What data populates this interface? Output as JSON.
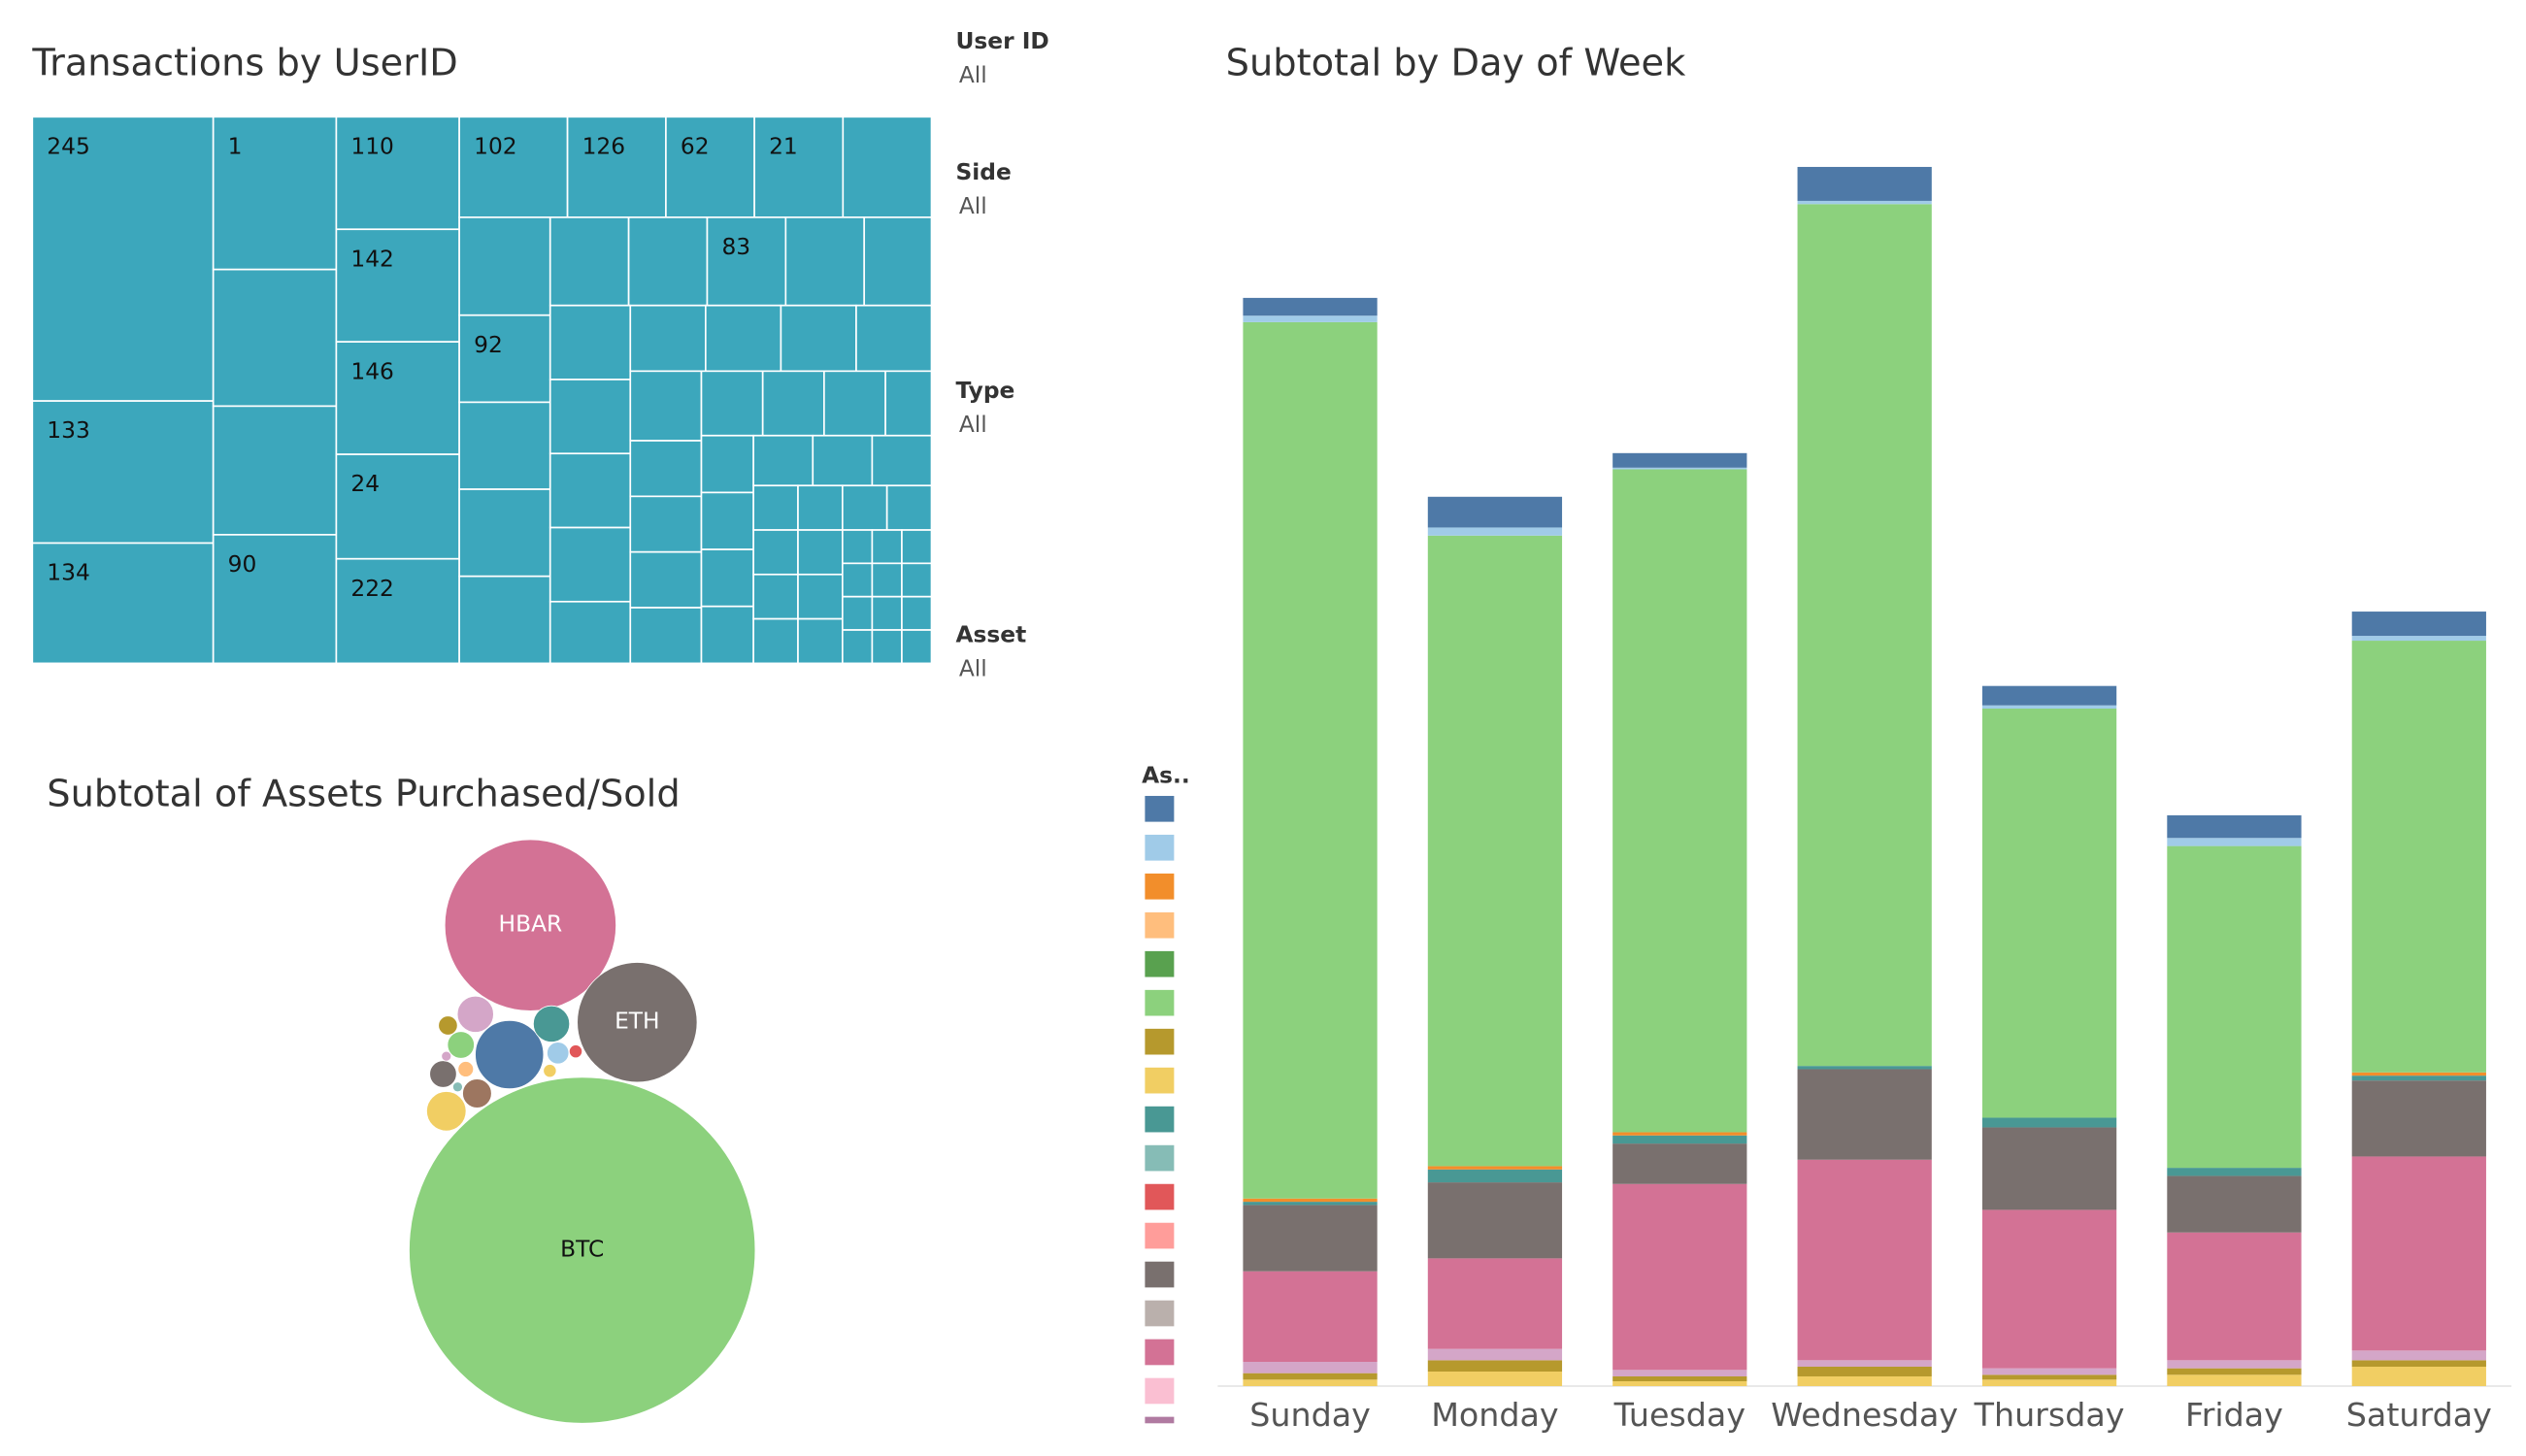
{
  "filters": [
    {
      "label": "User ID",
      "value": "All"
    },
    {
      "label": "Side",
      "value": "All"
    },
    {
      "label": "Type",
      "value": "All"
    },
    {
      "label": "Asset",
      "value": "All"
    }
  ],
  "chart_data": [
    {
      "type": "treemap",
      "title": "Transactions by UserID",
      "color": "#3ca7bc",
      "categories": [
        "245",
        "133",
        "134",
        "1",
        null,
        null,
        "90",
        "110",
        "142",
        "146",
        "24",
        "222",
        "102",
        "126",
        "62",
        "21",
        null,
        null,
        "92",
        null,
        null,
        null,
        null,
        null,
        "83",
        null,
        null,
        null,
        null,
        null,
        null,
        null,
        null,
        null,
        null,
        null,
        null,
        null,
        null,
        null,
        null,
        null,
        null,
        null,
        null,
        null,
        null,
        null,
        null,
        null,
        null,
        null,
        null,
        null,
        null,
        null,
        null,
        null,
        null,
        null,
        null,
        null,
        null,
        null,
        null,
        null,
        null,
        null,
        null,
        null,
        null,
        null,
        null,
        null
      ],
      "values": [
        52,
        26,
        22,
        19,
        17,
        16,
        16,
        14,
        14,
        14,
        13,
        13,
        11,
        10,
        9,
        9,
        9,
        9,
        8,
        8,
        8,
        8,
        7,
        7,
        7,
        7,
        6,
        6,
        6,
        6,
        6,
        5,
        5,
        5,
        5,
        5,
        5,
        4,
        4,
        4,
        4,
        4,
        4,
        4,
        3,
        3,
        3,
        3,
        3,
        3,
        3,
        3,
        2,
        2,
        2,
        2,
        2,
        2,
        2,
        2,
        2,
        2,
        1,
        1,
        1,
        1,
        1,
        1,
        1,
        1,
        1,
        1,
        1,
        1
      ]
    },
    {
      "type": "packed_bubble",
      "title": "Subtotal of Assets Purchased/Sold",
      "categories": [
        "BTC",
        "HBAR",
        "ETH",
        null,
        null,
        null,
        null,
        null,
        null,
        null,
        null,
        null,
        null,
        null,
        null,
        null,
        null
      ],
      "values": [
        100,
        24.5,
        12,
        3.9,
        1.1,
        1.1,
        1.3,
        0.7,
        0.6,
        0.6,
        0.3,
        0.4,
        0.14,
        0.2,
        0.14,
        0.08,
        0.08
      ],
      "colors": [
        "#8cd17d",
        "#d37295",
        "#79706e",
        "#4e79a7",
        "#499894",
        "#d4a6c8",
        "#f1ce63",
        "#9d7660",
        "#79706e",
        "#8cd17d",
        "#b6992d",
        "#a0cbe8",
        "#e15759",
        "#ffbe7d",
        "#f1ce63",
        "#d4a6c8",
        "#86bcb6"
      ],
      "label_colors": [
        "#111111",
        "#ffffff",
        "#ffffff"
      ]
    },
    {
      "type": "bar",
      "stacked": true,
      "title": "Subtotal by Day of Week",
      "categories": [
        "Sunday",
        "Monday",
        "Tuesday",
        "Wednesday",
        "Thursday",
        "Friday",
        "Saturday"
      ],
      "ylim": [
        0,
        800
      ],
      "series": [
        {
          "color": "#f1ce63",
          "values": [
            4,
            9,
            3,
            6,
            4,
            7,
            12
          ]
        },
        {
          "color": "#b6992d",
          "values": [
            4,
            7,
            3,
            6,
            3,
            4,
            4
          ]
        },
        {
          "color": "#d4a6c8",
          "values": [
            7,
            7,
            4,
            4,
            4,
            5,
            6
          ]
        },
        {
          "color": "#d37295",
          "values": [
            56,
            56,
            115,
            124,
            98,
            79,
            120
          ]
        },
        {
          "color": "#79706e",
          "values": [
            41,
            47,
            25,
            56,
            51,
            35,
            47
          ]
        },
        {
          "color": "#499894",
          "values": [
            2,
            8,
            5,
            2,
            6,
            5,
            3
          ]
        },
        {
          "color": "#f28e2b",
          "values": [
            2,
            2,
            2,
            0,
            0,
            0,
            2
          ]
        },
        {
          "color": "#8cd17d",
          "values": [
            542,
            390,
            410,
            533,
            253,
            199,
            267
          ]
        },
        {
          "color": "#a0cbe8",
          "values": [
            4,
            5,
            1,
            2,
            2,
            5,
            3
          ]
        },
        {
          "color": "#4e79a7",
          "values": [
            11,
            19,
            9,
            21,
            12,
            14,
            15
          ]
        }
      ],
      "legend": {
        "title": "As..",
        "colors": [
          "#4e79a7",
          "#a0cbe8",
          "#f28e2b",
          "#ffbe7d",
          "#59a14f",
          "#8cd17d",
          "#b6992d",
          "#f1ce63",
          "#499894",
          "#86bcb6",
          "#e15759",
          "#ff9d9a",
          "#79706e",
          "#bab0ac",
          "#d37295",
          "#fabfd2",
          "#b07aa1"
        ]
      }
    }
  ]
}
